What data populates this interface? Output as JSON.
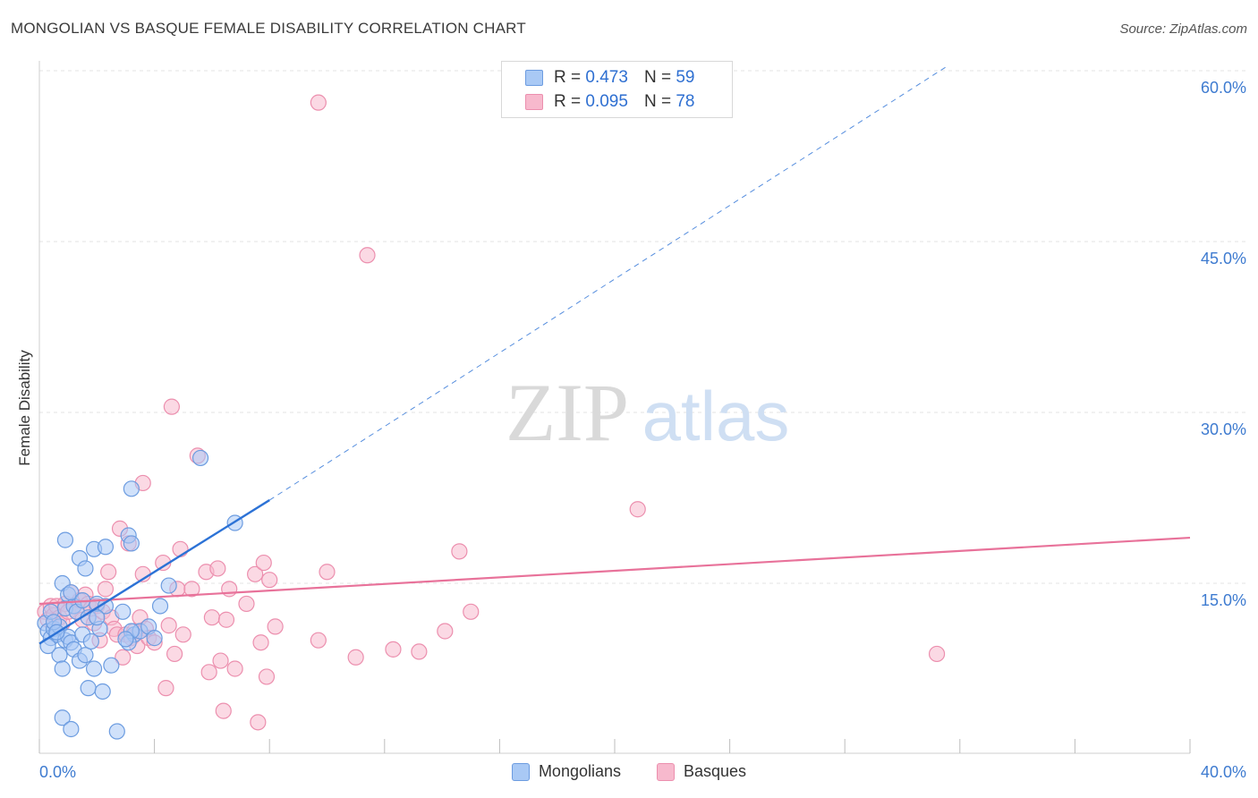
{
  "header": {
    "title": "MONGOLIAN VS BASQUE FEMALE DISABILITY CORRELATION CHART",
    "source": "Source: ZipAtlas.com"
  },
  "watermark": {
    "zip": "ZIP",
    "atlas": "atlas"
  },
  "legend": {
    "rows": [
      {
        "r_label": "R =",
        "r_value": "0.473",
        "n_label": "N =",
        "n_value": "59"
      },
      {
        "r_label": "R =",
        "r_value": "0.095",
        "n_label": "N =",
        "n_value": "78"
      }
    ],
    "bottom": [
      "Mongolians",
      "Basques"
    ]
  },
  "colors": {
    "blue_fill": "#a9c9f5",
    "blue_stroke": "#6c9ce0",
    "blue_line": "#2c72d6",
    "pink_fill": "#f7b9cd",
    "pink_stroke": "#ec8fae",
    "pink_line": "#e8729a",
    "tick_text": "#3e7bd0",
    "grid": "#e3e3e3"
  },
  "chart_data": {
    "type": "scatter",
    "title": "MONGOLIAN VS BASQUE FEMALE DISABILITY CORRELATION CHART",
    "xlabel": "",
    "ylabel": "Female Disability",
    "xlim": [
      0,
      40
    ],
    "ylim": [
      0,
      62
    ],
    "x_tick_labels": [
      "0.0%",
      "40.0%"
    ],
    "y_ticks": [
      15,
      30,
      45,
      60
    ],
    "y_tick_labels": [
      "15.0%",
      "30.0%",
      "45.0%",
      "60.0%"
    ],
    "series": [
      {
        "name": "Mongolians",
        "r": 0.473,
        "n": 59,
        "trend": {
          "solid": [
            [
              0,
              9.7
            ],
            [
              8,
              22.3
            ]
          ],
          "dashed": [
            [
              8,
              22.3
            ],
            [
              31.5,
              60.3
            ]
          ]
        },
        "points": [
          [
            0.2,
            11.5
          ],
          [
            0.3,
            10.8
          ],
          [
            0.4,
            12.5
          ],
          [
            0.4,
            10.2
          ],
          [
            0.5,
            11.0
          ],
          [
            0.6,
            10.5
          ],
          [
            0.7,
            8.7
          ],
          [
            0.7,
            11.2
          ],
          [
            0.8,
            15.0
          ],
          [
            0.8,
            7.5
          ],
          [
            0.9,
            10.0
          ],
          [
            0.9,
            12.8
          ],
          [
            0.9,
            18.8
          ],
          [
            1.0,
            14.0
          ],
          [
            1.0,
            10.3
          ],
          [
            1.1,
            9.8
          ],
          [
            1.2,
            13.0
          ],
          [
            1.2,
            9.2
          ],
          [
            1.3,
            12.5
          ],
          [
            1.4,
            8.2
          ],
          [
            1.4,
            17.2
          ],
          [
            1.5,
            10.5
          ],
          [
            1.6,
            8.7
          ],
          [
            1.6,
            16.3
          ],
          [
            1.7,
            12.0
          ],
          [
            1.7,
            5.8
          ],
          [
            1.8,
            9.9
          ],
          [
            1.9,
            18.0
          ],
          [
            1.9,
            7.5
          ],
          [
            2.0,
            13.2
          ],
          [
            2.1,
            11.0
          ],
          [
            2.2,
            5.5
          ],
          [
            2.3,
            18.2
          ],
          [
            2.3,
            13.0
          ],
          [
            2.5,
            7.8
          ],
          [
            2.7,
            2.0
          ],
          [
            2.9,
            12.5
          ],
          [
            3.1,
            19.2
          ],
          [
            3.2,
            18.5
          ],
          [
            3.3,
            10.5
          ],
          [
            3.5,
            10.8
          ],
          [
            3.8,
            11.2
          ],
          [
            3.2,
            10.8
          ],
          [
            3.1,
            9.8
          ],
          [
            0.5,
            11.6
          ],
          [
            0.3,
            9.5
          ],
          [
            0.8,
            3.2
          ],
          [
            1.1,
            14.2
          ],
          [
            1.1,
            2.2
          ],
          [
            3.2,
            23.3
          ],
          [
            4.0,
            10.2
          ],
          [
            4.2,
            13.0
          ],
          [
            4.5,
            14.8
          ],
          [
            5.6,
            26.0
          ],
          [
            6.8,
            20.3
          ],
          [
            1.5,
            13.5
          ],
          [
            2.0,
            12.0
          ],
          [
            0.6,
            10.7
          ],
          [
            3.0,
            10.1
          ]
        ]
      },
      {
        "name": "Basques",
        "r": 0.095,
        "n": 78,
        "trend": {
          "solid": [
            [
              0,
              13.2
            ],
            [
              40,
              19.0
            ]
          ]
        },
        "points": [
          [
            0.2,
            12.5
          ],
          [
            0.3,
            11.8
          ],
          [
            0.4,
            13.0
          ],
          [
            0.5,
            12.2
          ],
          [
            0.6,
            13.0
          ],
          [
            0.7,
            12.0
          ],
          [
            0.8,
            11.5
          ],
          [
            0.9,
            13.2
          ],
          [
            1.0,
            12.5
          ],
          [
            1.1,
            14.2
          ],
          [
            1.2,
            13.0
          ],
          [
            1.3,
            12.5
          ],
          [
            1.4,
            13.5
          ],
          [
            1.5,
            11.8
          ],
          [
            1.6,
            14.0
          ],
          [
            1.7,
            13.2
          ],
          [
            1.8,
            12.8
          ],
          [
            1.9,
            11.5
          ],
          [
            2.0,
            13.0
          ],
          [
            2.1,
            10.0
          ],
          [
            2.2,
            12.5
          ],
          [
            2.3,
            14.5
          ],
          [
            2.4,
            16.0
          ],
          [
            2.5,
            12.0
          ],
          [
            2.6,
            11.0
          ],
          [
            2.7,
            10.5
          ],
          [
            2.8,
            19.8
          ],
          [
            2.9,
            8.5
          ],
          [
            3.0,
            10.5
          ],
          [
            3.1,
            18.5
          ],
          [
            3.2,
            10.2
          ],
          [
            3.3,
            10.8
          ],
          [
            3.4,
            9.5
          ],
          [
            3.5,
            12.0
          ],
          [
            3.6,
            15.8
          ],
          [
            3.7,
            11.0
          ],
          [
            3.8,
            10.2
          ],
          [
            4.0,
            9.8
          ],
          [
            4.3,
            16.8
          ],
          [
            4.5,
            11.3
          ],
          [
            4.8,
            14.5
          ],
          [
            4.4,
            5.8
          ],
          [
            4.7,
            8.8
          ],
          [
            3.6,
            23.8
          ],
          [
            4.6,
            30.5
          ],
          [
            5.0,
            10.5
          ],
          [
            5.3,
            14.5
          ],
          [
            5.5,
            26.2
          ],
          [
            5.8,
            16.0
          ],
          [
            6.0,
            12.0
          ],
          [
            6.3,
            8.2
          ],
          [
            6.2,
            16.3
          ],
          [
            6.5,
            11.8
          ],
          [
            6.6,
            14.5
          ],
          [
            6.8,
            7.5
          ],
          [
            7.2,
            13.2
          ],
          [
            7.5,
            15.8
          ],
          [
            7.8,
            16.8
          ],
          [
            7.6,
            2.8
          ],
          [
            7.7,
            9.8
          ],
          [
            8.0,
            15.3
          ],
          [
            6.4,
            3.8
          ],
          [
            5.9,
            7.2
          ],
          [
            8.2,
            11.2
          ],
          [
            7.9,
            6.8
          ],
          [
            10.0,
            16.0
          ],
          [
            9.7,
            10.0
          ],
          [
            11.0,
            8.5
          ],
          [
            12.3,
            9.2
          ],
          [
            13.2,
            9.0
          ],
          [
            14.1,
            10.8
          ],
          [
            14.6,
            17.8
          ],
          [
            15.0,
            12.5
          ],
          [
            11.4,
            43.8
          ],
          [
            9.7,
            57.2
          ],
          [
            20.8,
            21.5
          ],
          [
            31.2,
            8.8
          ],
          [
            4.9,
            18.0
          ]
        ]
      }
    ]
  }
}
